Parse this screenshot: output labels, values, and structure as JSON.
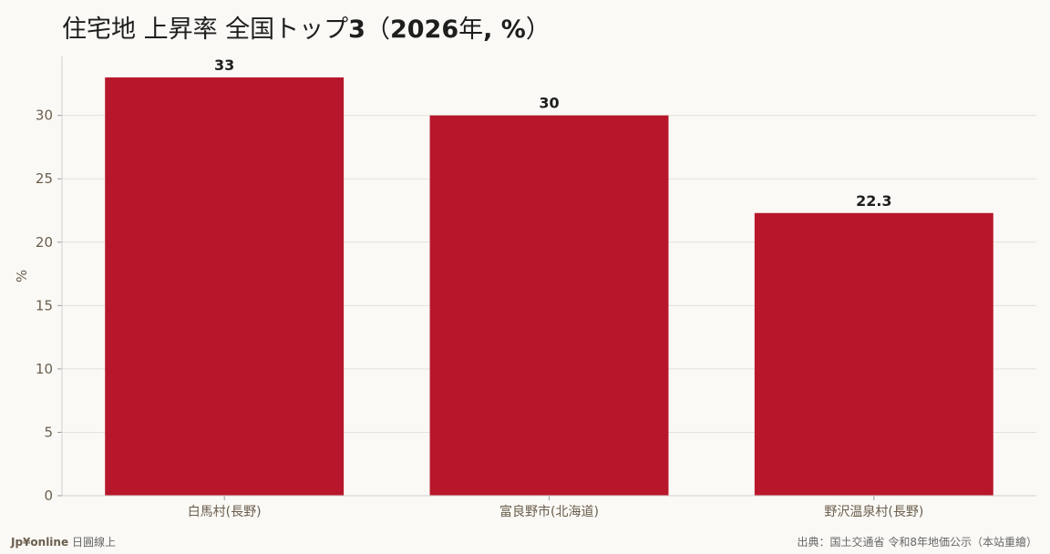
{
  "chart_data": {
    "type": "bar",
    "title": "住宅地 上昇率 全国トップ3（2026年, %）",
    "title_parts": [
      "住宅地 上昇率 全国トップ",
      "3",
      "（",
      "2026",
      "年",
      ", %",
      "）"
    ],
    "categories": [
      "白馬村(長野)",
      "富良野市(北海道)",
      "野沢温泉村(長野)"
    ],
    "values": [
      33,
      30,
      22.3
    ],
    "value_labels": [
      "33",
      "30",
      "22.3"
    ],
    "xlabel": "",
    "ylabel": "%",
    "ylim": [
      0,
      34.65
    ],
    "yticks": [
      0,
      5,
      10,
      15,
      20,
      25,
      30
    ],
    "grid": true,
    "legend": "none",
    "bar_color": "#b8172b"
  },
  "footer": {
    "brand": "Jp¥online",
    "brand_sub": "日圓線上",
    "source": "出典：国土交通省 令和8年地価公示（本站重繪）"
  }
}
